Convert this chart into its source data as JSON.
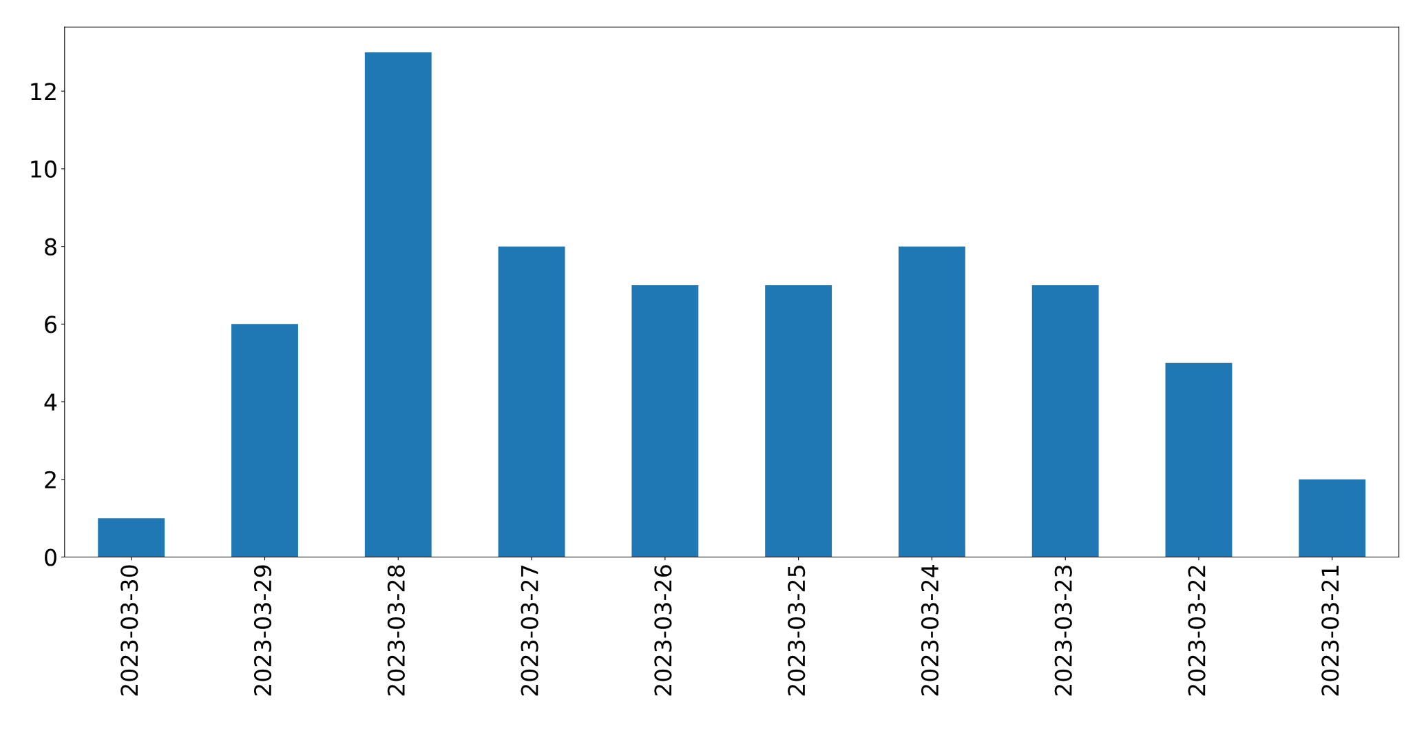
{
  "chart_data": {
    "type": "bar",
    "categories": [
      "2023-03-30",
      "2023-03-29",
      "2023-03-28",
      "2023-03-27",
      "2023-03-26",
      "2023-03-25",
      "2023-03-24",
      "2023-03-23",
      "2023-03-22",
      "2023-03-21"
    ],
    "values": [
      1,
      6,
      13,
      8,
      7,
      7,
      8,
      7,
      5,
      2
    ],
    "color": "#1f77b4",
    "ylim": [
      0,
      13.65
    ],
    "yticks": [
      0,
      2,
      4,
      6,
      8,
      10,
      12
    ],
    "grid": false,
    "legend": false
  }
}
